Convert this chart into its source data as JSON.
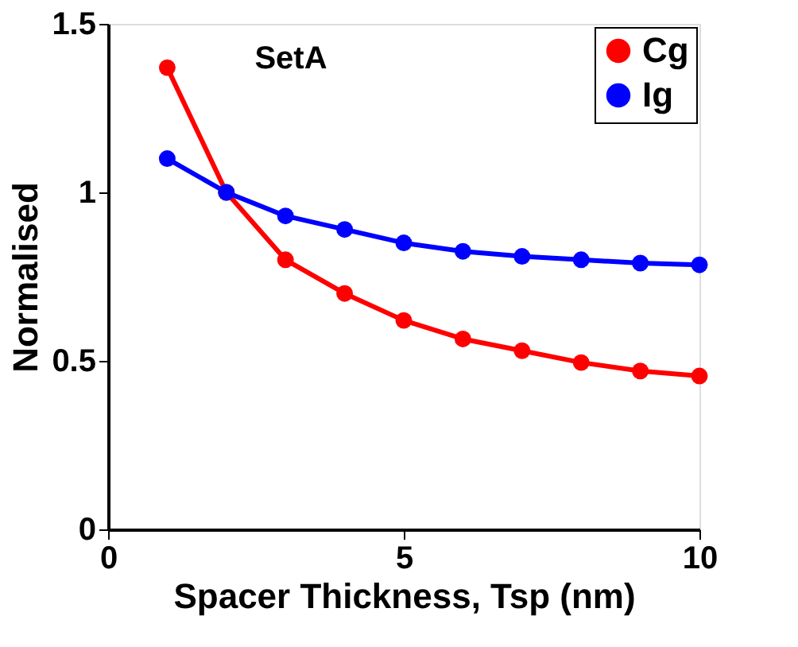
{
  "chart_data": {
    "type": "line",
    "xlabel": "Spacer Thickness, Tsp (nm)",
    "ylabel": "Normalised",
    "annotations": [
      "SetA"
    ],
    "x": [
      1,
      2,
      3,
      4,
      5,
      6,
      7,
      8,
      9,
      10
    ],
    "series": [
      {
        "name": "Cg",
        "color": "#ff0000",
        "values": [
          1.37,
          1.0,
          0.8,
          0.7,
          0.62,
          0.565,
          0.53,
          0.495,
          0.47,
          0.455
        ]
      },
      {
        "name": "Ig",
        "color": "#0000ff",
        "values": [
          1.1,
          1.0,
          0.93,
          0.89,
          0.85,
          0.825,
          0.81,
          0.8,
          0.79,
          0.785
        ]
      }
    ],
    "xlim": [
      0,
      10
    ],
    "ylim": [
      0,
      1.5
    ],
    "xticks": [
      0,
      5,
      10
    ],
    "yticks": [
      0,
      0.5,
      1,
      1.5
    ],
    "grid": false,
    "legend": "top right",
    "marker": "circle",
    "line_style": "solid"
  }
}
